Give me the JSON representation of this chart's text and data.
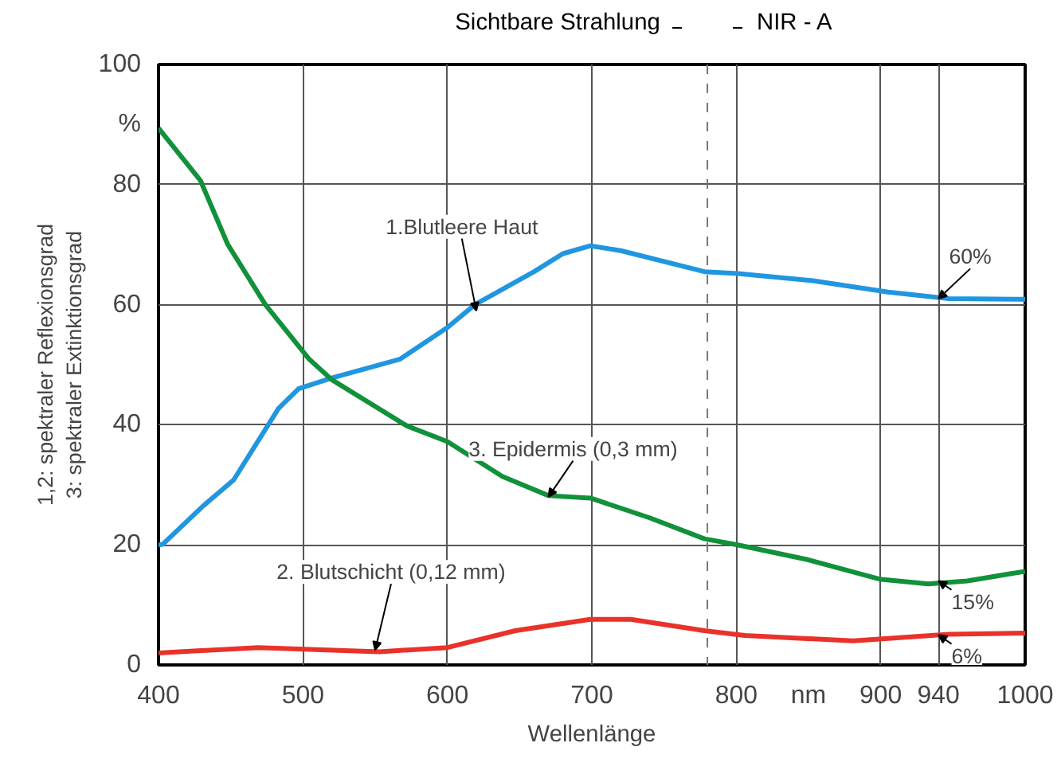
{
  "chart_data": {
    "type": "line",
    "xlabel": "Wellenlänge",
    "ylabel": "1,2: spektraler Reflexionsgrad\n3: spektraler Extinktionsgrad",
    "xlim": [
      400,
      1000
    ],
    "ylim": [
      0,
      100
    ],
    "xticks": [
      400,
      500,
      600,
      700,
      800,
      900,
      940,
      1000
    ],
    "yticks": [
      0,
      20,
      40,
      60,
      80,
      100
    ],
    "grid": true,
    "legend": false,
    "line_style": "solid",
    "marker": "none",
    "series": [
      {
        "color": "#2196e0",
        "x": [
          400,
          403,
          431,
          452,
          483,
          497,
          520,
          544,
          567,
          600,
          619,
          660,
          680,
          699,
          720,
          778,
          801,
          853,
          905,
          947,
          1000
        ],
        "values": [
          20,
          20.1,
          26.5,
          30.8,
          42.7,
          46,
          47.8,
          49.4,
          50.9,
          56.2,
          60,
          65.5,
          68.5,
          69.8,
          69,
          65.5,
          65.2,
          64,
          62.1,
          61,
          60.9
        ]
      },
      {
        "color": "#11913a",
        "x": [
          400,
          429,
          448,
          474,
          504,
          520,
          572,
          600,
          638,
          670,
          699,
          740,
          778,
          801,
          850,
          899,
          933,
          960,
          1000
        ],
        "values": [
          89.4,
          80.7,
          70,
          60,
          51,
          47.5,
          39.8,
          37.2,
          31.4,
          28.2,
          27.8,
          24.5,
          21,
          20,
          17.5,
          14.3,
          13.5,
          14,
          15.6
        ]
      },
      {
        "color": "#e8322a",
        "x": [
          400,
          469,
          553,
          600,
          647,
          699,
          727,
          778,
          806,
          881,
          947,
          1000
        ],
        "values": [
          2,
          2.9,
          2.2,
          2.9,
          5.7,
          7.6,
          7.6,
          5.7,
          4.9,
          4,
          5.1,
          5.3
        ]
      }
    ],
    "ref_lines": [
      {
        "axis": "x",
        "value": 780,
        "label": "NIR - A",
        "line_style": "dashed"
      }
    ],
    "annotations": [
      "Sichtbare Strahlung",
      "%",
      "nm",
      {
        "text": "1.Blutleere Haut",
        "x": 620,
        "y": 59
      },
      {
        "text": "3. Epidermis (0,3 mm)",
        "x": 670,
        "y": 28
      },
      {
        "text": "2. Blutschicht (0,12 mm)",
        "x": 550,
        "y": 2.5
      },
      {
        "text": "60%",
        "x": 940,
        "y": 61
      },
      {
        "text": "15%",
        "x": 940,
        "y": 14
      },
      {
        "text": "6%",
        "x": 940,
        "y": 5
      }
    ]
  }
}
